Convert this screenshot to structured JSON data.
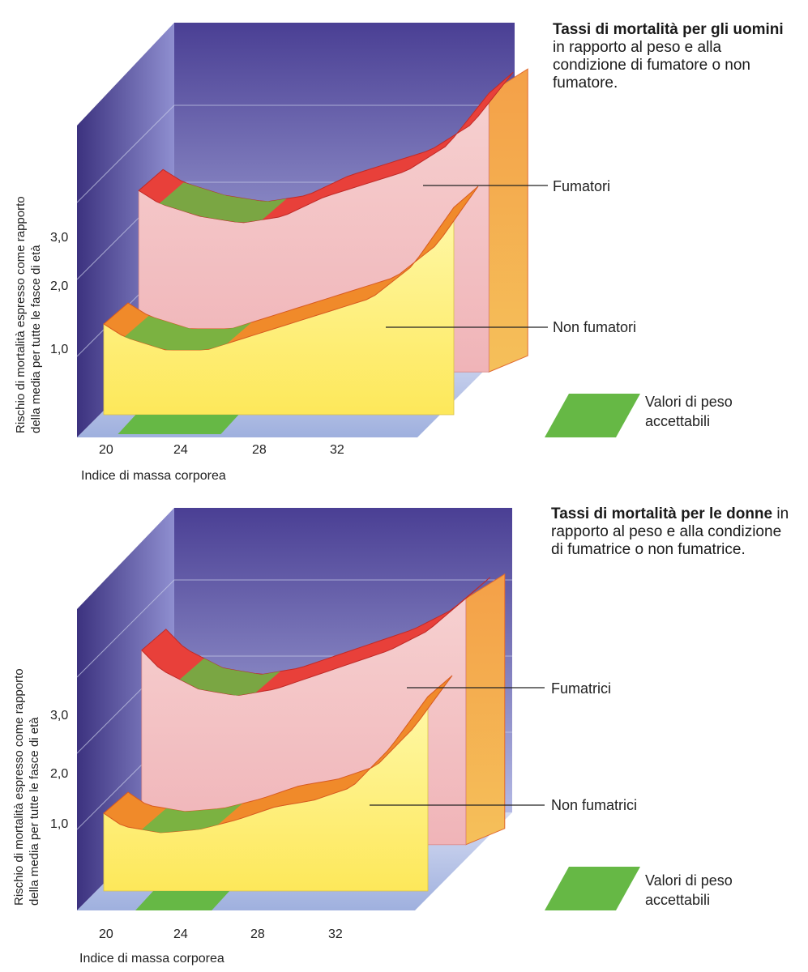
{
  "captions": [
    {
      "bold": "Tassi di mortalità per gli uomini",
      "rest": " in rapporto al peso e alla condizione di fumatore o non fumatore."
    },
    {
      "bold": "Tassi di mortalità per le donne",
      "rest": " in rapporto al peso e alla condizione di fumatrice o non fumatrice."
    }
  ],
  "colors": {
    "back_wall": "#5a4fa0",
    "floor": "#b9c6e8",
    "curtain_upper": "#f4c3c3",
    "curtain_lower": "#fff27a",
    "top_upper": "#e8403a",
    "top_lower": "#f08a2a",
    "acceptable": "#66b845"
  },
  "chart_data": [
    {
      "type": "area",
      "ylabel_line1": "Rischio di mortalità espresso come rapporto",
      "ylabel_line2": "della media per tutte le fasce di età",
      "xlabel": "Indice di massa corporea",
      "x_ticks": [
        "20",
        "24",
        "28",
        "32"
      ],
      "y_ticks": [
        "1,0",
        "2,0",
        "3,0"
      ],
      "ylim": [
        0,
        4
      ],
      "xlim": [
        19,
        36
      ],
      "acceptable_range": [
        20,
        25
      ],
      "acceptable_label_line1": "Valori di peso",
      "acceptable_label_line2": "accettabili",
      "series": [
        {
          "name": "Fumatori",
          "x": [
            19,
            20,
            22,
            24,
            26,
            28,
            30,
            32,
            34,
            36
          ],
          "values": [
            2.8,
            2.6,
            2.4,
            2.3,
            2.4,
            2.7,
            2.9,
            3.1,
            3.5,
            4.3
          ]
        },
        {
          "name": "Non fumatori",
          "x": [
            19,
            20,
            22,
            24,
            26,
            28,
            30,
            32,
            34,
            36
          ],
          "values": [
            1.4,
            1.2,
            1.0,
            1.0,
            1.2,
            1.4,
            1.6,
            1.8,
            2.3,
            3.2
          ]
        }
      ]
    },
    {
      "type": "area",
      "ylabel_line1": "Rischio di mortalità espresso come rapporto",
      "ylabel_line2": "della media per tutte le fasce di età",
      "xlabel": "Indice di massa corporea",
      "x_ticks": [
        "20",
        "24",
        "28",
        "32"
      ],
      "y_ticks": [
        "1,0",
        "2,0",
        "3,0"
      ],
      "ylim": [
        0,
        4
      ],
      "xlim": [
        19,
        36
      ],
      "acceptable_range": [
        21,
        25
      ],
      "acceptable_label_line1": "Valori di peso",
      "acceptable_label_line2": "accettabili",
      "series": [
        {
          "name": "Fumatrici",
          "x": [
            19,
            20,
            22,
            24,
            26,
            28,
            30,
            32,
            34,
            36
          ],
          "values": [
            3.0,
            2.7,
            2.4,
            2.3,
            2.4,
            2.6,
            2.8,
            3.0,
            3.3,
            3.8
          ]
        },
        {
          "name": "Non fumatrici",
          "x": [
            19,
            20,
            22,
            24,
            26,
            28,
            30,
            32,
            34,
            36
          ],
          "values": [
            1.2,
            1.0,
            0.9,
            0.95,
            1.1,
            1.3,
            1.4,
            1.6,
            2.2,
            3.0
          ]
        }
      ]
    }
  ]
}
